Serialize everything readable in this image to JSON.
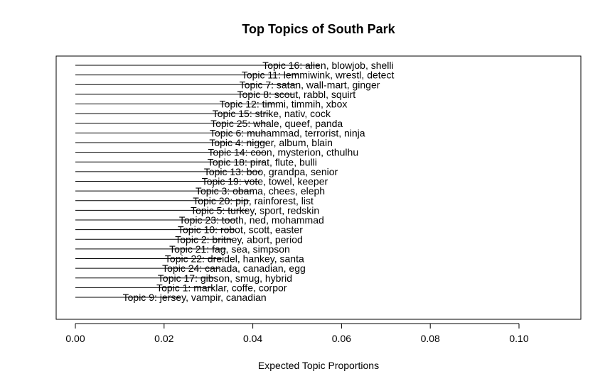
{
  "chart_data": {
    "type": "bar",
    "orientation": "horizontal",
    "title": "Top Topics of South Park",
    "xlabel": "Expected Topic Proportions",
    "ylabel": "",
    "xlim": [
      0,
      0.1135
    ],
    "xticks": [
      0.0,
      0.02,
      0.04,
      0.06,
      0.08,
      0.1
    ],
    "xtick_labels": [
      "0.00",
      "0.02",
      "0.04",
      "0.06",
      "0.08",
      "0.10"
    ],
    "grid": false,
    "categories": [
      "Topic 16: alien, blowjob, shelli",
      "Topic 11: lemmiwink, wrestl, detect",
      "Topic 7: satan, wall-mart, ginger",
      "Topic 8: scout, rabbl, squirt",
      "Topic 12: timmi, timmih, xbox",
      "Topic 15: strike, nativ, cock",
      "Topic 25: whale, queef, panda",
      "Topic 6: muhammad, terrorist, ninja",
      "Topic 4: nigger, album, blain",
      "Topic 14: coon, mysterion, cthulhu",
      "Topic 18: pirat, flute, bulli",
      "Topic 13: boo, grandpa, senior",
      "Topic 19: vote, towel, keeper",
      "Topic 3: obama, chees, eleph",
      "Topic 20: pip, rainforest, list",
      "Topic 5: turkey, sport, redskin",
      "Topic 23: tooth, ned, mohammad",
      "Topic 10: robot, scott, easter",
      "Topic 2: britney, abort, period",
      "Topic 21: fag, sea, simpson",
      "Topic 22: dreidel, hankey, santa",
      "Topic 24: canada, canadian, egg",
      "Topic 17: gibson, smug, hybrid",
      "Topic 1: marklar, coffe, corpor",
      "Topic 9: jersey, vampir, canadian"
    ],
    "values": [
      0.055,
      0.0503,
      0.0498,
      0.0493,
      0.0453,
      0.0437,
      0.0433,
      0.0431,
      0.043,
      0.0427,
      0.0426,
      0.0418,
      0.0413,
      0.0399,
      0.0393,
      0.0388,
      0.0362,
      0.0359,
      0.0353,
      0.034,
      0.033,
      0.0324,
      0.0314,
      0.0311,
      0.0235
    ]
  }
}
